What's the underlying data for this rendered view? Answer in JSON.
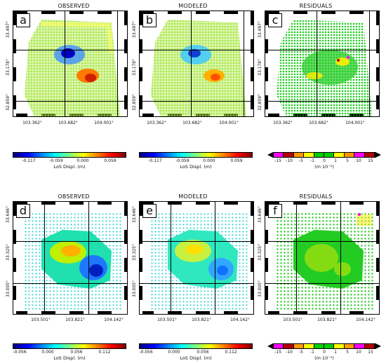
{
  "titles": {
    "a": "OBSERVED",
    "b": "MODELED",
    "c": "RESIDUALS",
    "d": "OBSERVED",
    "e": "MODELED",
    "f": "RESIDUALS"
  },
  "letters": {
    "a": "a",
    "b": "b",
    "c": "c",
    "d": "d",
    "e": "e",
    "f": "f"
  },
  "top_axes": {
    "x_ticks": [
      "103.362°",
      "103.682°",
      "104.001°"
    ],
    "y_ticks": [
      "33.497°",
      "33.178°",
      "32.859°"
    ]
  },
  "bottom_axes": {
    "x_ticks": [
      "103.501°",
      "103.821°",
      "104.142°"
    ],
    "y_ticks": [
      "33.646°",
      "33.325°",
      "33.005°"
    ]
  },
  "colorbar_top": {
    "ticks": [
      "-0.117",
      "-0.059",
      "0.000",
      "0.059"
    ],
    "label": "LoS Displ. (m)"
  },
  "colorbar_bottom": {
    "ticks": [
      "-0.056",
      "0.000",
      "0.056",
      "0.112"
    ],
    "label": "LoS Displ. (m)"
  },
  "residual_bar": {
    "ticks": [
      "-15",
      "-10",
      "-5",
      "-1",
      "0",
      "1",
      "5",
      "10",
      "15"
    ],
    "label": "(m·10⁻²)"
  },
  "colors": {
    "jet": "linear-gradient(90deg,#00007f,#0000ff,#007fff,#00ffff,#7fff7f,#ffff00,#ff7f00,#ff0000,#7f0000)",
    "residual_bins": [
      "#ff00ff",
      "#b40000",
      "#ff9900",
      "#ffff00",
      "#00d000",
      "#00d000",
      "#ffff00",
      "#ff9900",
      "#ff00ff",
      "#b40000"
    ]
  }
}
